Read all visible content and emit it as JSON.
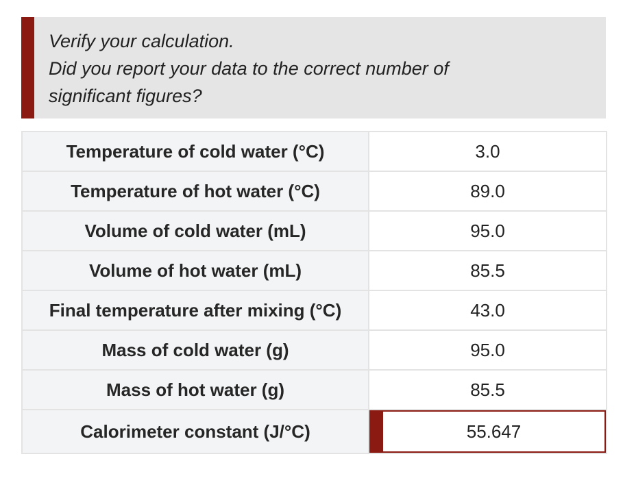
{
  "feedback": {
    "lines": [
      "Verify your calculation.",
      "Did you report your data to the correct number of",
      "significant figures?"
    ]
  },
  "table": {
    "rows": [
      {
        "label": "Temperature of cold water (°C)",
        "value": "3.0"
      },
      {
        "label": "Temperature of hot water (°C)",
        "value": "89.0"
      },
      {
        "label": "Volume of cold water (mL)",
        "value": "95.0"
      },
      {
        "label": "Volume of hot water (mL)",
        "value": "85.5"
      },
      {
        "label": "Final temperature after mixing (°C)",
        "value": "43.0"
      },
      {
        "label": "Mass of cold water (g)",
        "value": "95.0"
      },
      {
        "label": "Mass of hot water (g)",
        "value": "85.5"
      }
    ],
    "answer": {
      "label": "Calorimeter constant (J/°C)",
      "value": "55.647"
    }
  },
  "colors": {
    "accent": "#8b1a13",
    "feedback_bg": "#e5e5e5",
    "label_bg": "#f3f4f5",
    "border": "#e3e3e3"
  }
}
